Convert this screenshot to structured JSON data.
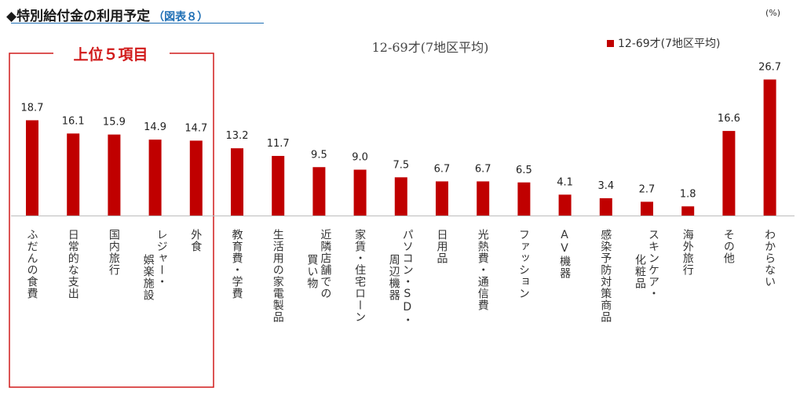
{
  "header": {
    "title": "◆特別給付金の利用予定",
    "badge": "（図表８）",
    "unit": "(%)"
  },
  "top_box_label": "上位５項目",
  "colors": {
    "bar": "#c00000",
    "box": "#d11b1b",
    "header_accent": "#1f6fb5"
  },
  "chart_data": {
    "type": "bar",
    "title": "12-69才(7地区平均)",
    "legend": {
      "position": "top-right",
      "entries": [
        "12-69才(7地区平均)"
      ]
    },
    "categories": [
      "ふだんの食費",
      "日常的な支出",
      "国内旅行",
      "レジャー・娯楽施設",
      "外食",
      "教育費・学費",
      "生活用の家電製品",
      "近隣店舗での買い物",
      "家賃・住宅ローン",
      "パソコン・SD・周辺機器",
      "日用品",
      "光熱費・通信費",
      "ファッション",
      "AV機器",
      "感染予防対策商品",
      "スキンケア・化粧品",
      "海外旅行",
      "その他",
      "わからない"
    ],
    "label_columns": [
      [
        "ふだんの食費"
      ],
      [
        "日常的な支出"
      ],
      [
        "国内旅行"
      ],
      [
        "レジャー・",
        "娯楽施設"
      ],
      [
        "外食"
      ],
      [
        "教育費・学費"
      ],
      [
        "生活用の家電製品"
      ],
      [
        "近隣店舗での",
        "買い物"
      ],
      [
        "家賃・住宅ローン"
      ],
      [
        "パソコン・SD・",
        "周辺機器"
      ],
      [
        "日用品"
      ],
      [
        "光熱費・通信費"
      ],
      [
        "ファッション"
      ],
      [
        "AV機器"
      ],
      [
        "感染予防対策商品"
      ],
      [
        "スキンケア・",
        "化粧品"
      ],
      [
        "海外旅行"
      ],
      [
        "その他"
      ],
      [
        "わからない"
      ]
    ],
    "series": [
      {
        "name": "12-69才(7地区平均)",
        "values": [
          18.7,
          16.1,
          15.9,
          14.9,
          14.7,
          13.2,
          11.7,
          9.5,
          9.0,
          7.5,
          6.7,
          6.7,
          6.5,
          4.1,
          3.4,
          2.7,
          1.8,
          16.6,
          26.7
        ],
        "labels": [
          "18.7",
          "16.1",
          "15.9",
          "14.9",
          "14.7",
          "13.2",
          "11.7",
          "9.5",
          "9.0",
          "7.5",
          "6.7",
          "6.7",
          "6.5",
          "4.1",
          "3.4",
          "2.7",
          "1.8",
          "16.6",
          "26.7"
        ]
      }
    ],
    "ylim": [
      0,
      30
    ],
    "grid": false
  }
}
